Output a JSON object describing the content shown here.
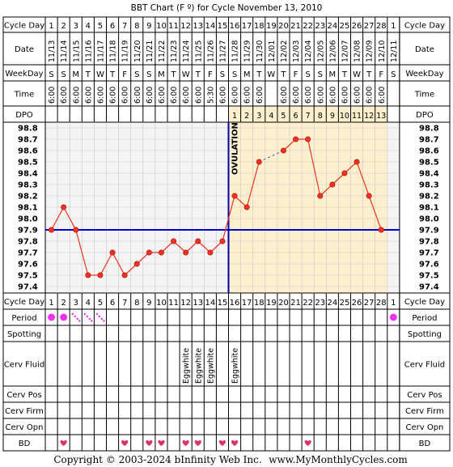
{
  "title": "BBT Chart (F º) for Cycle November 13, 2010",
  "row_labels": {
    "cycle_day": "Cycle Day",
    "date": "Date",
    "weekday": "WeekDay",
    "time": "Time",
    "dpo": "DPO",
    "period": "Period",
    "spotting": "Spotting",
    "cerv_fluid": "Cerv Fluid",
    "cerv_pos": "Cerv Pos",
    "cerv_firm": "Cerv Firm",
    "cerv_opn": "Cerv Opn",
    "bd": "BD"
  },
  "columns": [
    {
      "day": "1",
      "date": "11/13",
      "weekday": "S",
      "time": "6:00",
      "dpo": ""
    },
    {
      "day": "2",
      "date": "11/14",
      "weekday": "S",
      "time": "6:00",
      "dpo": ""
    },
    {
      "day": "3",
      "date": "11/15",
      "weekday": "M",
      "time": "6:00",
      "dpo": ""
    },
    {
      "day": "4",
      "date": "11/16",
      "weekday": "T",
      "time": "6:00",
      "dpo": ""
    },
    {
      "day": "5",
      "date": "11/17",
      "weekday": "W",
      "time": "6:00",
      "dpo": ""
    },
    {
      "day": "6",
      "date": "11/18",
      "weekday": "T",
      "time": "6:00",
      "dpo": ""
    },
    {
      "day": "7",
      "date": "11/19",
      "weekday": "F",
      "time": "6:00",
      "dpo": ""
    },
    {
      "day": "8",
      "date": "11/20",
      "weekday": "S",
      "time": "6:00",
      "dpo": ""
    },
    {
      "day": "9",
      "date": "11/21",
      "weekday": "S",
      "time": "6:00",
      "dpo": ""
    },
    {
      "day": "10",
      "date": "11/22",
      "weekday": "M",
      "time": "6:00",
      "dpo": ""
    },
    {
      "day": "11",
      "date": "11/23",
      "weekday": "T",
      "time": "6:00",
      "dpo": ""
    },
    {
      "day": "12",
      "date": "11/24",
      "weekday": "W",
      "time": "6:00",
      "dpo": ""
    },
    {
      "day": "13",
      "date": "11/25",
      "weekday": "T",
      "time": "6:00",
      "dpo": ""
    },
    {
      "day": "14",
      "date": "11/26",
      "weekday": "F",
      "time": "5:30",
      "dpo": ""
    },
    {
      "day": "15",
      "date": "11/27",
      "weekday": "S",
      "time": "6:00",
      "dpo": ""
    },
    {
      "day": "16",
      "date": "11/28",
      "weekday": "S",
      "time": "6:00",
      "dpo": "1"
    },
    {
      "day": "17",
      "date": "11/29",
      "weekday": "M",
      "time": "6:00",
      "dpo": "2"
    },
    {
      "day": "18",
      "date": "11/30",
      "weekday": "T",
      "time": "6:00",
      "dpo": "3"
    },
    {
      "day": "19",
      "date": "12/01",
      "weekday": "W",
      "time": "",
      "dpo": "4"
    },
    {
      "day": "20",
      "date": "12/02",
      "weekday": "T",
      "time": "6:00",
      "dpo": "5"
    },
    {
      "day": "21",
      "date": "12/03",
      "weekday": "F",
      "time": "6:00",
      "dpo": "6"
    },
    {
      "day": "22",
      "date": "12/04",
      "weekday": "S",
      "time": "6:00",
      "dpo": "7"
    },
    {
      "day": "23",
      "date": "12/05",
      "weekday": "S",
      "time": "6:00",
      "dpo": "8"
    },
    {
      "day": "24",
      "date": "12/06",
      "weekday": "M",
      "time": "6:00",
      "dpo": "9"
    },
    {
      "day": "25",
      "date": "12/07",
      "weekday": "T",
      "time": "6:00",
      "dpo": "10"
    },
    {
      "day": "26",
      "date": "12/08",
      "weekday": "W",
      "time": "6:00",
      "dpo": "11"
    },
    {
      "day": "27",
      "date": "12/09",
      "weekday": "T",
      "time": "6:00",
      "dpo": "12"
    },
    {
      "day": "28",
      "date": "12/10",
      "weekday": "F",
      "time": "6:00",
      "dpo": "13"
    },
    {
      "day": "1",
      "date": "12/11",
      "weekday": "S",
      "time": "",
      "dpo": ""
    }
  ],
  "ovulation_label": "OVULATION",
  "eggwhite_label": "Eggwhite",
  "copyright": "Copyright © 2003-2024 bInfinity Web Inc.",
  "site": "www.MyMonthlyCycles.com",
  "colors": {
    "grid_bg": "#f4f4f4",
    "luteal_bg": "#fdf0cf",
    "temp_line": "#ee3322",
    "coverline": "#0000cc",
    "ovulation_line": "#0000aa",
    "period": "#ee33ee",
    "bd_heart": "#dd3366"
  },
  "chart_data": {
    "type": "line",
    "title": "BBT Chart (F º) for Cycle November 13, 2010",
    "xlabel": "Cycle Day",
    "ylabel": "",
    "ylim": [
      97.4,
      98.8
    ],
    "y_ticks": [
      "98.8",
      "98.7",
      "98.6",
      "98.5",
      "98.4",
      "98.3",
      "98.2",
      "98.1",
      "98.0",
      "97.9",
      "97.8",
      "97.7",
      "97.6",
      "97.5",
      "97.4"
    ],
    "x": [
      1,
      2,
      3,
      4,
      5,
      6,
      7,
      8,
      9,
      10,
      11,
      12,
      13,
      14,
      15,
      16,
      17,
      18,
      19,
      20,
      21,
      22,
      23,
      24,
      25,
      26,
      27,
      28
    ],
    "series": [
      {
        "values": [
          97.9,
          98.1,
          97.9,
          97.5,
          97.5,
          97.7,
          97.5,
          97.6,
          97.7,
          97.7,
          97.8,
          97.7,
          97.8,
          97.7,
          97.8,
          98.2,
          98.1,
          98.5,
          null,
          98.6,
          98.7,
          98.7,
          98.2,
          98.3,
          98.4,
          98.5,
          98.2,
          97.9
        ]
      }
    ],
    "coverline": 97.9,
    "ovulation_after_day": 15,
    "grid": true,
    "period_days": [
      {
        "day": 1,
        "type": "full"
      },
      {
        "day": 2,
        "type": "full"
      },
      {
        "day": 3,
        "type": "light"
      },
      {
        "day": 4,
        "type": "light"
      },
      {
        "day": 5,
        "type": "light"
      },
      {
        "day": 29,
        "type": "full"
      }
    ],
    "cerv_fluid_eggwhite_days": [
      12,
      13,
      14,
      16
    ],
    "bd_days": [
      2,
      7,
      9,
      10,
      12,
      13,
      15,
      16,
      22
    ]
  }
}
